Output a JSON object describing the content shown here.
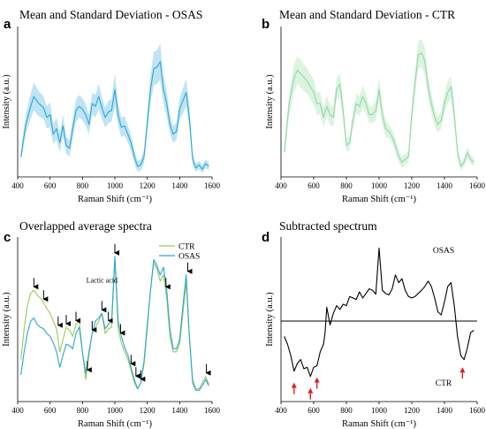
{
  "colors": {
    "osas": "#2ba6d6",
    "osas_band": "#bfe4f5",
    "ctr": "#8fd9a0",
    "ctr_band": "#dcf3e2",
    "ctr_overlap": "#99cc55",
    "arrow_black": "#000000",
    "arrow_red": "#e02020"
  },
  "chart_data": [
    {
      "letter": "a",
      "title": "Mean and Standard Deviation - OSAS",
      "type": "area",
      "xlabel": "Raman Shift (cm⁻¹)",
      "ylabel": "Intensity (a.u.)",
      "xlim": [
        400,
        1600
      ],
      "ylim": [
        0,
        1
      ],
      "xticks": [
        400,
        600,
        800,
        1000,
        1200,
        1400,
        1600
      ],
      "series": [
        {
          "color": "#2ba6d6",
          "band_color": "#bfe4f5",
          "x": [
            420,
            450,
            480,
            500,
            530,
            560,
            580,
            600,
            620,
            640,
            660,
            680,
            700,
            720,
            740,
            760,
            780,
            800,
            820,
            840,
            860,
            880,
            900,
            920,
            940,
            960,
            980,
            1000,
            1020,
            1040,
            1060,
            1080,
            1100,
            1120,
            1140,
            1160,
            1180,
            1200,
            1220,
            1240,
            1260,
            1280,
            1300,
            1320,
            1340,
            1360,
            1380,
            1400,
            1420,
            1440,
            1460,
            1480,
            1500,
            1520,
            1540,
            1560,
            1580
          ],
          "mean": [
            0.12,
            0.35,
            0.48,
            0.55,
            0.5,
            0.47,
            0.4,
            0.42,
            0.28,
            0.32,
            0.22,
            0.34,
            0.2,
            0.18,
            0.32,
            0.45,
            0.48,
            0.46,
            0.42,
            0.35,
            0.5,
            0.48,
            0.55,
            0.47,
            0.4,
            0.44,
            0.45,
            0.6,
            0.42,
            0.33,
            0.34,
            0.28,
            0.22,
            0.12,
            0.05,
            0.06,
            0.12,
            0.36,
            0.6,
            0.75,
            0.76,
            0.8,
            0.6,
            0.5,
            0.35,
            0.28,
            0.3,
            0.46,
            0.52,
            0.58,
            0.4,
            0.1,
            0.04,
            0.06,
            0.03,
            0.07,
            0.05
          ],
          "sd": [
            0.04,
            0.07,
            0.09,
            0.1,
            0.09,
            0.08,
            0.08,
            0.09,
            0.07,
            0.08,
            0.07,
            0.08,
            0.06,
            0.06,
            0.07,
            0.08,
            0.08,
            0.08,
            0.08,
            0.07,
            0.08,
            0.08,
            0.09,
            0.08,
            0.07,
            0.08,
            0.08,
            0.12,
            0.08,
            0.07,
            0.07,
            0.06,
            0.06,
            0.05,
            0.04,
            0.04,
            0.05,
            0.07,
            0.1,
            0.12,
            0.12,
            0.13,
            0.1,
            0.09,
            0.07,
            0.06,
            0.06,
            0.08,
            0.09,
            0.1,
            0.08,
            0.04,
            0.03,
            0.03,
            0.03,
            0.03,
            0.03
          ]
        }
      ]
    },
    {
      "letter": "b",
      "title": "Mean and Standard Deviation - CTR",
      "type": "area",
      "xlabel": "Raman Shift (cm⁻¹)",
      "ylabel": "Intensity (a.u.)",
      "xlim": [
        400,
        1600
      ],
      "ylim": [
        0,
        1
      ],
      "xticks": [
        400,
        600,
        800,
        1000,
        1200,
        1400,
        1600
      ],
      "series": [
        {
          "color": "#8fd9a0",
          "band_color": "#dcf3e2",
          "x": [
            420,
            450,
            480,
            500,
            530,
            560,
            580,
            600,
            620,
            640,
            660,
            680,
            700,
            720,
            740,
            760,
            780,
            800,
            820,
            840,
            860,
            880,
            900,
            920,
            940,
            960,
            980,
            1000,
            1020,
            1040,
            1060,
            1080,
            1100,
            1120,
            1140,
            1160,
            1180,
            1200,
            1220,
            1240,
            1260,
            1280,
            1300,
            1320,
            1340,
            1360,
            1380,
            1400,
            1420,
            1440,
            1460,
            1480,
            1500,
            1520,
            1540,
            1560,
            1580
          ],
          "mean": [
            0.15,
            0.5,
            0.68,
            0.74,
            0.7,
            0.66,
            0.62,
            0.58,
            0.5,
            0.5,
            0.4,
            0.48,
            0.42,
            0.4,
            0.6,
            0.64,
            0.45,
            0.2,
            0.22,
            0.38,
            0.5,
            0.48,
            0.55,
            0.5,
            0.42,
            0.42,
            0.45,
            0.6,
            0.42,
            0.32,
            0.3,
            0.26,
            0.2,
            0.12,
            0.08,
            0.1,
            0.12,
            0.42,
            0.65,
            0.85,
            0.86,
            0.8,
            0.62,
            0.5,
            0.4,
            0.35,
            0.38,
            0.5,
            0.58,
            0.62,
            0.42,
            0.15,
            0.05,
            0.08,
            0.15,
            0.1,
            0.08
          ],
          "sd": [
            0.05,
            0.08,
            0.1,
            0.1,
            0.1,
            0.09,
            0.09,
            0.09,
            0.08,
            0.08,
            0.07,
            0.08,
            0.07,
            0.07,
            0.08,
            0.08,
            0.07,
            0.05,
            0.05,
            0.06,
            0.07,
            0.07,
            0.08,
            0.07,
            0.06,
            0.06,
            0.07,
            0.09,
            0.07,
            0.06,
            0.05,
            0.05,
            0.05,
            0.04,
            0.04,
            0.04,
            0.04,
            0.07,
            0.09,
            0.1,
            0.1,
            0.1,
            0.08,
            0.07,
            0.06,
            0.06,
            0.06,
            0.07,
            0.08,
            0.08,
            0.07,
            0.04,
            0.03,
            0.03,
            0.04,
            0.03,
            0.03
          ]
        }
      ]
    },
    {
      "letter": "c",
      "title": "Overlapped average spectra",
      "type": "line",
      "xlabel": "Raman Shift (cm⁻¹)",
      "ylabel": "Intensity (a.u.)",
      "xlim": [
        400,
        1600
      ],
      "ylim": [
        0,
        1
      ],
      "xticks": [
        400,
        600,
        800,
        1000,
        1200,
        1400,
        1600
      ],
      "legend": "top-right",
      "annotation": "Lactic acid",
      "annotation_x": 920,
      "arrows_x": [
        500,
        560,
        650,
        700,
        760,
        830,
        860,
        920,
        960,
        1000,
        1035,
        1100,
        1130,
        1160,
        1315,
        1450,
        1565
      ],
      "series": [
        {
          "name": "CTR",
          "color": "#99cc55",
          "x": [
            420,
            440,
            460,
            480,
            500,
            520,
            540,
            560,
            580,
            600,
            620,
            640,
            660,
            680,
            700,
            720,
            740,
            760,
            780,
            800,
            820,
            840,
            860,
            880,
            900,
            920,
            940,
            960,
            980,
            1000,
            1020,
            1040,
            1060,
            1080,
            1100,
            1120,
            1140,
            1160,
            1180,
            1200,
            1220,
            1240,
            1260,
            1280,
            1300,
            1320,
            1340,
            1360,
            1380,
            1400,
            1420,
            1440,
            1460,
            1480,
            1500,
            1520,
            1540,
            1560,
            1580
          ],
          "y": [
            0.25,
            0.45,
            0.6,
            0.68,
            0.7,
            0.67,
            0.65,
            0.62,
            0.58,
            0.55,
            0.5,
            0.45,
            0.3,
            0.38,
            0.46,
            0.44,
            0.4,
            0.48,
            0.5,
            0.3,
            0.12,
            0.28,
            0.42,
            0.46,
            0.5,
            0.55,
            0.42,
            0.45,
            0.46,
            0.9,
            0.45,
            0.36,
            0.3,
            0.25,
            0.18,
            0.1,
            0.06,
            0.1,
            0.22,
            0.45,
            0.7,
            0.88,
            0.84,
            0.76,
            0.8,
            0.65,
            0.4,
            0.3,
            0.3,
            0.35,
            0.55,
            0.75,
            0.4,
            0.12,
            0.06,
            0.06,
            0.1,
            0.14,
            0.09
          ]
        },
        {
          "name": "OSAS",
          "color": "#2ba6d6",
          "x": [
            420,
            440,
            460,
            480,
            500,
            520,
            540,
            560,
            580,
            600,
            620,
            640,
            660,
            680,
            700,
            720,
            740,
            760,
            780,
            800,
            820,
            840,
            860,
            880,
            900,
            920,
            940,
            960,
            980,
            1000,
            1020,
            1040,
            1060,
            1080,
            1100,
            1120,
            1140,
            1160,
            1180,
            1200,
            1220,
            1240,
            1260,
            1280,
            1300,
            1320,
            1340,
            1360,
            1380,
            1400,
            1420,
            1440,
            1460,
            1480,
            1500,
            1520,
            1540,
            1560,
            1580
          ],
          "y": [
            0.15,
            0.3,
            0.42,
            0.5,
            0.52,
            0.48,
            0.46,
            0.45,
            0.42,
            0.4,
            0.36,
            0.3,
            0.2,
            0.28,
            0.35,
            0.34,
            0.32,
            0.42,
            0.46,
            0.3,
            0.16,
            0.3,
            0.42,
            0.5,
            0.52,
            0.55,
            0.45,
            0.48,
            0.5,
            0.92,
            0.5,
            0.4,
            0.33,
            0.28,
            0.2,
            0.12,
            0.06,
            0.1,
            0.24,
            0.48,
            0.7,
            0.9,
            0.86,
            0.8,
            0.85,
            0.7,
            0.45,
            0.32,
            0.32,
            0.38,
            0.6,
            0.8,
            0.4,
            0.1,
            0.05,
            0.05,
            0.08,
            0.12,
            0.08
          ]
        }
      ]
    },
    {
      "letter": "d",
      "title": "Subtracted spectrum",
      "type": "line",
      "xlabel": "Raman Shift (cm⁻¹)",
      "ylabel": "Intensity (a.u.)",
      "xlim": [
        400,
        1600
      ],
      "ylim": [
        -1,
        1
      ],
      "xticks": [
        400,
        600,
        800,
        1000,
        1200,
        1400,
        1600
      ],
      "baseline": 0,
      "upper_label": "OSAS",
      "lower_label": "CTR",
      "red_arrows_x": [
        480,
        580,
        620,
        1510
      ],
      "series": [
        {
          "color": "#000000",
          "x": [
            420,
            440,
            460,
            480,
            500,
            520,
            540,
            560,
            580,
            600,
            620,
            640,
            660,
            670,
            680,
            700,
            720,
            740,
            760,
            780,
            800,
            820,
            840,
            860,
            880,
            900,
            920,
            940,
            960,
            980,
            1000,
            1020,
            1040,
            1060,
            1080,
            1100,
            1120,
            1140,
            1160,
            1180,
            1200,
            1220,
            1240,
            1260,
            1280,
            1300,
            1320,
            1340,
            1360,
            1380,
            1400,
            1420,
            1440,
            1460,
            1480,
            1500,
            1520,
            1540,
            1560,
            1580
          ],
          "y": [
            -0.2,
            -0.3,
            -0.45,
            -0.65,
            -0.55,
            -0.5,
            -0.62,
            -0.6,
            -0.72,
            -0.6,
            -0.58,
            -0.4,
            -0.3,
            -0.15,
            0.18,
            -0.05,
            0.1,
            0.2,
            0.15,
            0.22,
            0.2,
            0.32,
            0.3,
            0.28,
            0.38,
            0.3,
            0.36,
            0.42,
            0.4,
            0.35,
            0.95,
            0.4,
            0.36,
            0.34,
            0.42,
            0.6,
            0.5,
            0.55,
            0.4,
            0.32,
            0.3,
            0.32,
            0.36,
            0.4,
            0.45,
            0.52,
            0.45,
            0.3,
            0.12,
            0.08,
            0.25,
            0.45,
            0.5,
            0.2,
            -0.2,
            -0.45,
            -0.5,
            -0.35,
            -0.15,
            -0.12
          ]
        }
      ]
    }
  ]
}
